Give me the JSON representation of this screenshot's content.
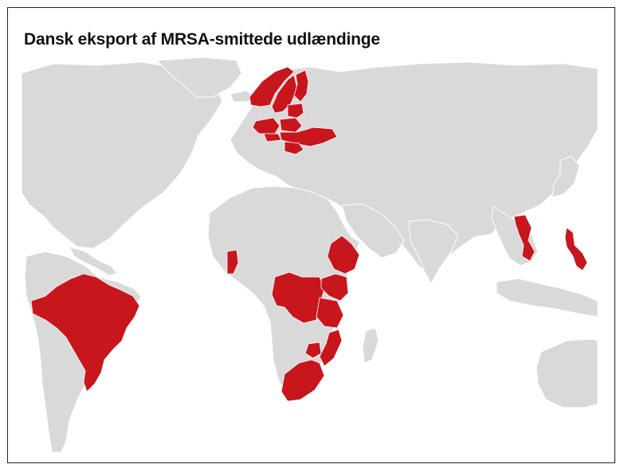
{
  "title": "Dansk eksport af MRSA-smittede udlændinge",
  "colors": {
    "land": "#d9d9d9",
    "highlight": "#c8161d",
    "background": "#ffffff",
    "border": "#ffffff"
  },
  "highlighted_countries": [
    "Norway",
    "Sweden",
    "Finland",
    "Estonia",
    "Latvia",
    "Lithuania",
    "Poland",
    "Belarus",
    "Ukraine",
    "Romania",
    "Moldova",
    "Slovakia",
    "Czechia",
    "Hungary",
    "Brazil",
    "Ghana",
    "DR Congo",
    "Ethiopia",
    "Kenya",
    "Somalia",
    "Uganda",
    "Rwanda",
    "Tanzania",
    "Malawi",
    "Mozambique",
    "Zambia",
    "Zimbabwe",
    "South Africa",
    "Vietnam",
    "Philippines"
  ]
}
